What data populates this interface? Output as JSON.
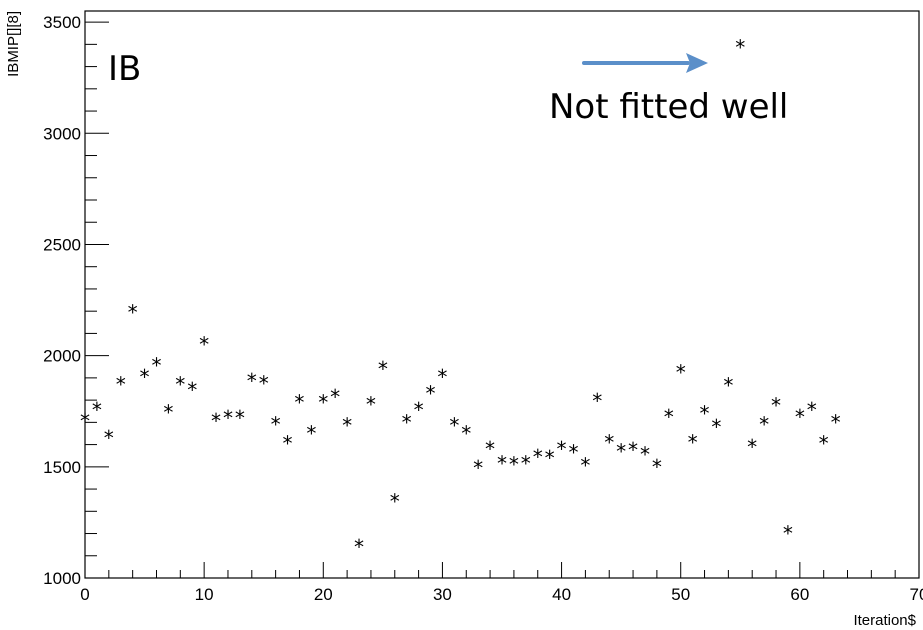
{
  "chart_data": {
    "type": "scatter",
    "xlabel": "Iteration$",
    "ylabel": "IBMIP[][8]",
    "xlim": [
      0,
      70
    ],
    "ylim": [
      1000,
      3550
    ],
    "xticks": [
      0,
      10,
      20,
      30,
      40,
      50,
      60,
      70
    ],
    "yticks": [
      1000,
      1500,
      2000,
      2500,
      3000,
      3500
    ],
    "x_tick_labels": [
      "0",
      "10",
      "20",
      "30",
      "40",
      "50",
      "60",
      "70"
    ],
    "y_tick_labels": [
      "1000",
      "1500",
      "2000",
      "2500",
      "3000",
      "3500"
    ],
    "marker": "*",
    "grid": false,
    "points": [
      {
        "x": 0,
        "y": 1705
      },
      {
        "x": 1,
        "y": 1755
      },
      {
        "x": 2,
        "y": 1630
      },
      {
        "x": 3,
        "y": 1870
      },
      {
        "x": 4,
        "y": 2195
      },
      {
        "x": 5,
        "y": 1905
      },
      {
        "x": 6,
        "y": 1955
      },
      {
        "x": 7,
        "y": 1745
      },
      {
        "x": 8,
        "y": 1870
      },
      {
        "x": 9,
        "y": 1845
      },
      {
        "x": 10,
        "y": 2050
      },
      {
        "x": 11,
        "y": 1705
      },
      {
        "x": 12,
        "y": 1720
      },
      {
        "x": 13,
        "y": 1720
      },
      {
        "x": 14,
        "y": 1885
      },
      {
        "x": 15,
        "y": 1875
      },
      {
        "x": 16,
        "y": 1690
      },
      {
        "x": 17,
        "y": 1605
      },
      {
        "x": 18,
        "y": 1790
      },
      {
        "x": 19,
        "y": 1650
      },
      {
        "x": 20,
        "y": 1790
      },
      {
        "x": 21,
        "y": 1815
      },
      {
        "x": 22,
        "y": 1685
      },
      {
        "x": 23,
        "y": 1140
      },
      {
        "x": 24,
        "y": 1780
      },
      {
        "x": 25,
        "y": 1940
      },
      {
        "x": 26,
        "y": 1345
      },
      {
        "x": 27,
        "y": 1700
      },
      {
        "x": 28,
        "y": 1755
      },
      {
        "x": 29,
        "y": 1830
      },
      {
        "x": 30,
        "y": 1905
      },
      {
        "x": 31,
        "y": 1685
      },
      {
        "x": 32,
        "y": 1650
      },
      {
        "x": 33,
        "y": 1495
      },
      {
        "x": 34,
        "y": 1580
      },
      {
        "x": 35,
        "y": 1515
      },
      {
        "x": 36,
        "y": 1510
      },
      {
        "x": 37,
        "y": 1515
      },
      {
        "x": 38,
        "y": 1545
      },
      {
        "x": 39,
        "y": 1540
      },
      {
        "x": 40,
        "y": 1580
      },
      {
        "x": 41,
        "y": 1565
      },
      {
        "x": 42,
        "y": 1505
      },
      {
        "x": 43,
        "y": 1795
      },
      {
        "x": 44,
        "y": 1610
      },
      {
        "x": 45,
        "y": 1570
      },
      {
        "x": 46,
        "y": 1575
      },
      {
        "x": 47,
        "y": 1555
      },
      {
        "x": 48,
        "y": 1500
      },
      {
        "x": 49,
        "y": 1725
      },
      {
        "x": 50,
        "y": 1925
      },
      {
        "x": 51,
        "y": 1610
      },
      {
        "x": 52,
        "y": 1740
      },
      {
        "x": 53,
        "y": 1680
      },
      {
        "x": 54,
        "y": 1865
      },
      {
        "x": 55,
        "y": 3385
      },
      {
        "x": 56,
        "y": 1590
      },
      {
        "x": 57,
        "y": 1690
      },
      {
        "x": 58,
        "y": 1775
      },
      {
        "x": 59,
        "y": 1200
      },
      {
        "x": 60,
        "y": 1725
      },
      {
        "x": 61,
        "y": 1755
      },
      {
        "x": 62,
        "y": 1605
      },
      {
        "x": 63,
        "y": 1700
      }
    ],
    "annotations": {
      "panel_label": "IB",
      "outlier_note": "Not fitted well",
      "arrow_color": "#5b8fc9"
    }
  }
}
